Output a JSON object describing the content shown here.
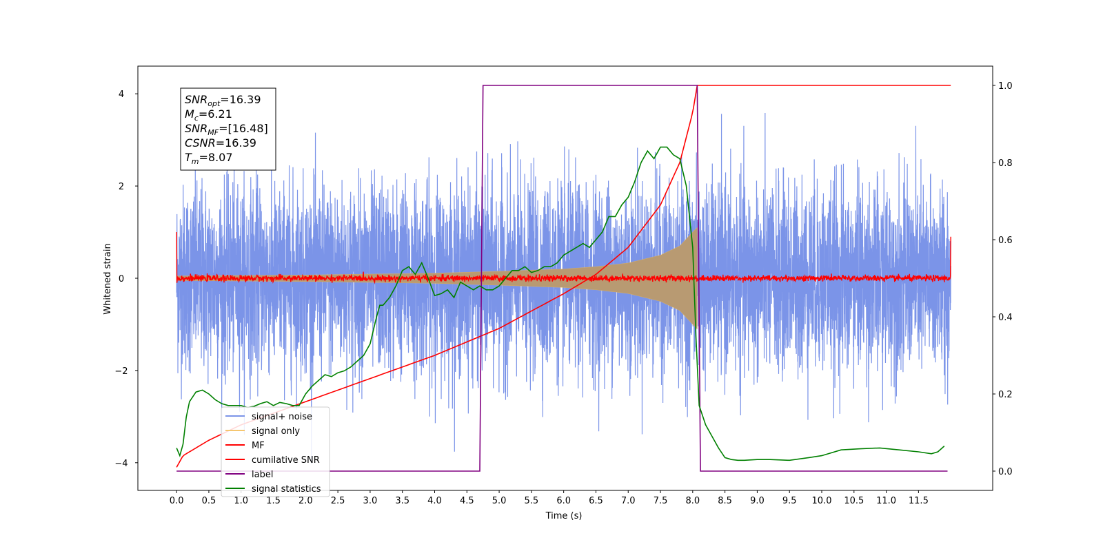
{
  "chart_data": {
    "type": "line",
    "xlabel": "Time (s)",
    "ylabel": "Whitened strain",
    "xlim": [
      -0.6,
      12.65
    ],
    "ylim": [
      -4.6,
      4.6
    ],
    "y2lim": [
      -0.05,
      1.05
    ],
    "x_ticks": [
      "0.0",
      "0.5",
      "1.0",
      "1.5",
      "2.0",
      "2.5",
      "3.0",
      "3.5",
      "4.0",
      "4.5",
      "5.0",
      "5.5",
      "6.0",
      "6.5",
      "7.0",
      "7.5",
      "8.0",
      "8.5",
      "9.0",
      "9.5",
      "10.0",
      "10.5",
      "11.0",
      "11.5"
    ],
    "y_ticks": [
      "-4",
      "-2",
      "0",
      "2",
      "4"
    ],
    "y2_ticks": [
      "0.0",
      "0.2",
      "0.4",
      "0.6",
      "0.8",
      "1.0"
    ],
    "legend_placement": "lower-left",
    "annotation": [
      {
        "var": "SNR",
        "sub": "opt",
        "text": "=16.39"
      },
      {
        "var": "M",
        "sub": "c",
        "text": "=6.21"
      },
      {
        "var": "SNR",
        "sub": "MF",
        "text": "=[16.48]"
      },
      {
        "var": "CSNR",
        "sub": "",
        "text": "=16.39"
      },
      {
        "var": "T",
        "sub": "m",
        "text": "=8.07"
      }
    ],
    "series": [
      {
        "name": "signal+ noise",
        "color": "#7b94e8",
        "kind": "noise",
        "axis": "left",
        "x_range": [
          0,
          12
        ],
        "approx_std": 1.0,
        "approx_max": 4.15,
        "approx_min": -4.15
      },
      {
        "name": "signal only",
        "color": "#f5b942",
        "kind": "chirp",
        "axis": "left",
        "x_range": [
          0,
          8.07
        ],
        "envelope": {
          "x": [
            0,
            2,
            4,
            5,
            6,
            6.5,
            7,
            7.5,
            7.8,
            8.0,
            8.07
          ],
          "amp": [
            0.05,
            0.07,
            0.11,
            0.15,
            0.2,
            0.25,
            0.33,
            0.5,
            0.7,
            1.0,
            1.1
          ]
        }
      },
      {
        "name": "MF",
        "color": "#ff0000",
        "kind": "matched-filter",
        "axis": "left",
        "x_range": [
          0,
          12
        ],
        "baseline": 0,
        "approx_amp": 0.06,
        "edges": {
          "start": 1.0,
          "end": 0.9
        }
      },
      {
        "name": "cumilative SNR",
        "color": "#ff0000",
        "axis": "right",
        "x": [
          0,
          0.1,
          0.5,
          1.0,
          2.0,
          3.0,
          4.0,
          5.0,
          6.0,
          6.5,
          7.0,
          7.5,
          7.8,
          8.0,
          8.07,
          12.0
        ],
        "y": [
          0.01,
          0.04,
          0.08,
          0.12,
          0.18,
          0.24,
          0.3,
          0.37,
          0.46,
          0.51,
          0.58,
          0.69,
          0.8,
          0.93,
          1.0,
          1.0
        ]
      },
      {
        "name": "label",
        "color": "#800080",
        "axis": "right",
        "x": [
          0,
          4.7,
          4.75,
          8.07,
          8.12,
          11.95
        ],
        "y": [
          0,
          0,
          1,
          1,
          0,
          0
        ]
      },
      {
        "name": "signal statistics",
        "color": "#008000",
        "axis": "right",
        "x": [
          0,
          0.05,
          0.1,
          0.15,
          0.2,
          0.3,
          0.4,
          0.5,
          0.6,
          0.7,
          0.8,
          0.9,
          1.0,
          1.1,
          1.2,
          1.3,
          1.4,
          1.5,
          1.6,
          1.7,
          1.8,
          1.9,
          2.0,
          2.1,
          2.2,
          2.3,
          2.4,
          2.5,
          2.6,
          2.7,
          2.8,
          2.9,
          3.0,
          3.1,
          3.15,
          3.2,
          3.3,
          3.4,
          3.5,
          3.6,
          3.7,
          3.8,
          3.9,
          4.0,
          4.1,
          4.2,
          4.3,
          4.4,
          4.5,
          4.6,
          4.7,
          4.8,
          4.9,
          5.0,
          5.1,
          5.2,
          5.3,
          5.4,
          5.5,
          5.6,
          5.7,
          5.8,
          5.9,
          6.0,
          6.1,
          6.2,
          6.3,
          6.4,
          6.5,
          6.6,
          6.7,
          6.8,
          6.9,
          7.0,
          7.1,
          7.2,
          7.3,
          7.4,
          7.5,
          7.6,
          7.7,
          7.8,
          7.9,
          8.0,
          8.05,
          8.1,
          8.2,
          8.3,
          8.4,
          8.5,
          8.6,
          8.7,
          8.8,
          9.0,
          9.2,
          9.5,
          9.8,
          10.0,
          10.3,
          10.6,
          10.9,
          11.2,
          11.5,
          11.7,
          11.8,
          11.9
        ],
        "y": [
          0.06,
          0.04,
          0.07,
          0.14,
          0.18,
          0.205,
          0.21,
          0.2,
          0.185,
          0.175,
          0.17,
          0.17,
          0.17,
          0.165,
          0.168,
          0.175,
          0.18,
          0.17,
          0.178,
          0.175,
          0.17,
          0.17,
          0.2,
          0.22,
          0.235,
          0.25,
          0.245,
          0.255,
          0.26,
          0.27,
          0.285,
          0.3,
          0.33,
          0.4,
          0.43,
          0.43,
          0.45,
          0.48,
          0.52,
          0.53,
          0.51,
          0.54,
          0.5,
          0.455,
          0.46,
          0.47,
          0.45,
          0.49,
          0.48,
          0.47,
          0.48,
          0.47,
          0.47,
          0.48,
          0.5,
          0.52,
          0.52,
          0.53,
          0.515,
          0.52,
          0.53,
          0.53,
          0.54,
          0.56,
          0.57,
          0.58,
          0.59,
          0.58,
          0.6,
          0.62,
          0.66,
          0.66,
          0.69,
          0.71,
          0.75,
          0.8,
          0.83,
          0.81,
          0.84,
          0.84,
          0.82,
          0.81,
          0.74,
          0.58,
          0.35,
          0.17,
          0.12,
          0.09,
          0.06,
          0.035,
          0.03,
          0.028,
          0.028,
          0.03,
          0.03,
          0.028,
          0.035,
          0.04,
          0.055,
          0.058,
          0.06,
          0.055,
          0.05,
          0.045,
          0.05,
          0.065
        ]
      }
    ]
  }
}
